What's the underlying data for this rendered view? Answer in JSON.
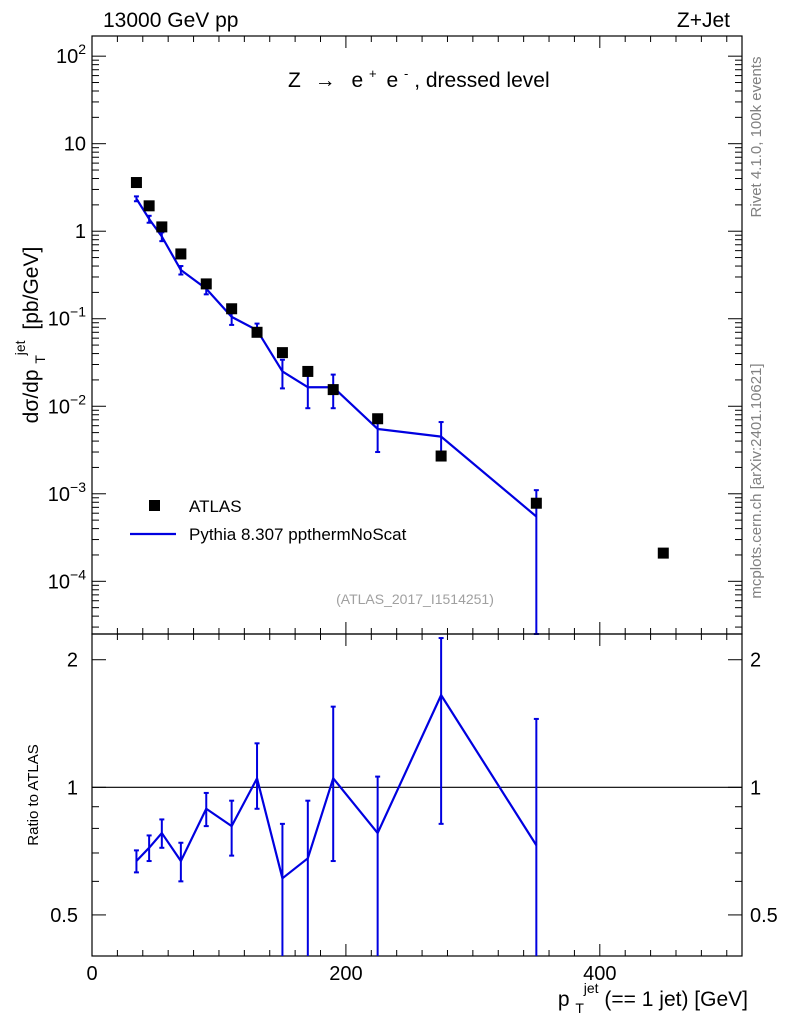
{
  "header": {
    "left": "13000 GeV pp",
    "right": "Z+Jet"
  },
  "side_labels": {
    "rivet": "Rivet 4.1.0,  100k events",
    "mcplots": "mcplots.cern.ch [arXiv:2401.10621]"
  },
  "chart_data": [
    {
      "type": "scatter",
      "panel": "main",
      "title": "Z → e⁺ e⁻, dressed level",
      "title_parts": {
        "pre": "Z",
        "arrow": "→",
        "e1": "e",
        "sup1": "+",
        "e2": "e",
        "sup2": "-",
        "post": ", dressed level"
      },
      "ylabel": "dσ/dp_T^jet [pb/GeV]",
      "ylabel_parts": {
        "main": "dσ/dp",
        "sub": "T",
        "sup": "jet",
        "unit": "[pb/GeV]"
      },
      "yscale": "log",
      "ylim": [
        2.5e-05,
        170
      ],
      "xlim": [
        0,
        512
      ],
      "y_ticks": [
        {
          "value": 100,
          "base": "10",
          "exp": "2"
        },
        {
          "value": 10,
          "base": "10",
          "exp": ""
        },
        {
          "value": 1,
          "base": "1",
          "exp": ""
        },
        {
          "value": 0.1,
          "base": "10",
          "exp": "−1"
        },
        {
          "value": 0.01,
          "base": "10",
          "exp": "−2"
        },
        {
          "value": 0.001,
          "base": "10",
          "exp": "−3"
        },
        {
          "value": 0.0001,
          "base": "10",
          "exp": "−4"
        }
      ],
      "watermark": "(ATLAS_2017_I1514251)",
      "legend_position": "bottom-left",
      "legend": [
        {
          "name": "ATLAS",
          "style": "marker"
        },
        {
          "name": "Pythia 8.307 ppthermNoScat",
          "style": "line"
        }
      ],
      "series": [
        {
          "name": "ATLAS",
          "x": [
            35,
            45,
            55,
            70,
            90,
            110,
            130,
            150,
            170,
            190,
            225,
            275,
            350,
            450
          ],
          "y": [
            3.6,
            1.95,
            1.12,
            0.55,
            0.25,
            0.13,
            0.07,
            0.041,
            0.025,
            0.0155,
            0.0072,
            0.0027,
            0.00078,
            0.00021
          ]
        },
        {
          "name": "Pythia 8.307 ppthermNoScat",
          "x": [
            35,
            45,
            55,
            70,
            90,
            110,
            130,
            150,
            170,
            190,
            225,
            275,
            350
          ],
          "y": [
            2.35,
            1.38,
            0.87,
            0.36,
            0.22,
            0.105,
            0.074,
            0.025,
            0.0165,
            0.0165,
            0.0055,
            0.0045,
            0.00055
          ],
          "err_low": [
            2.2,
            1.25,
            0.77,
            0.32,
            0.19,
            0.085,
            0.064,
            0.016,
            0.0095,
            0.0095,
            0.003,
            0.0024,
            1e-05
          ],
          "err_high": [
            2.5,
            1.5,
            0.97,
            0.4,
            0.25,
            0.125,
            0.088,
            0.034,
            0.024,
            0.023,
            0.008,
            0.0066,
            0.0011
          ]
        }
      ]
    },
    {
      "type": "line",
      "panel": "ratio",
      "ylabel": "Ratio to ATLAS",
      "xlabel": "p_T^jet (== 1 jet) [GeV]",
      "xlabel_parts": {
        "main": "p",
        "sub": "T",
        "sup": "jet",
        "rest": " (== 1 jet) [GeV]"
      },
      "yscale": "log",
      "ylim": [
        0.4,
        2.3
      ],
      "xlim": [
        0,
        512
      ],
      "x_ticks": [
        0,
        200,
        400
      ],
      "y_ticks": [
        2,
        1,
        0.5
      ],
      "y_tick_labels": [
        "2",
        "1",
        "0.5"
      ],
      "reference": 1,
      "series": [
        {
          "name": "Pythia 8.307 ppthermNoScat",
          "x": [
            35,
            45,
            55,
            70,
            90,
            110,
            130,
            150,
            170,
            190,
            225,
            275,
            350
          ],
          "y": [
            0.67,
            0.72,
            0.78,
            0.67,
            0.89,
            0.81,
            1.05,
            0.61,
            0.68,
            1.05,
            0.78,
            1.65,
            0.73
          ],
          "err_low": [
            0.63,
            0.67,
            0.72,
            0.6,
            0.81,
            0.69,
            0.89,
            0.3,
            0.3,
            0.67,
            0.35,
            0.82,
            0.3
          ],
          "err_high": [
            0.71,
            0.77,
            0.84,
            0.74,
            0.97,
            0.93,
            1.27,
            0.82,
            0.93,
            1.55,
            1.06,
            2.25,
            1.45
          ]
        }
      ]
    }
  ]
}
